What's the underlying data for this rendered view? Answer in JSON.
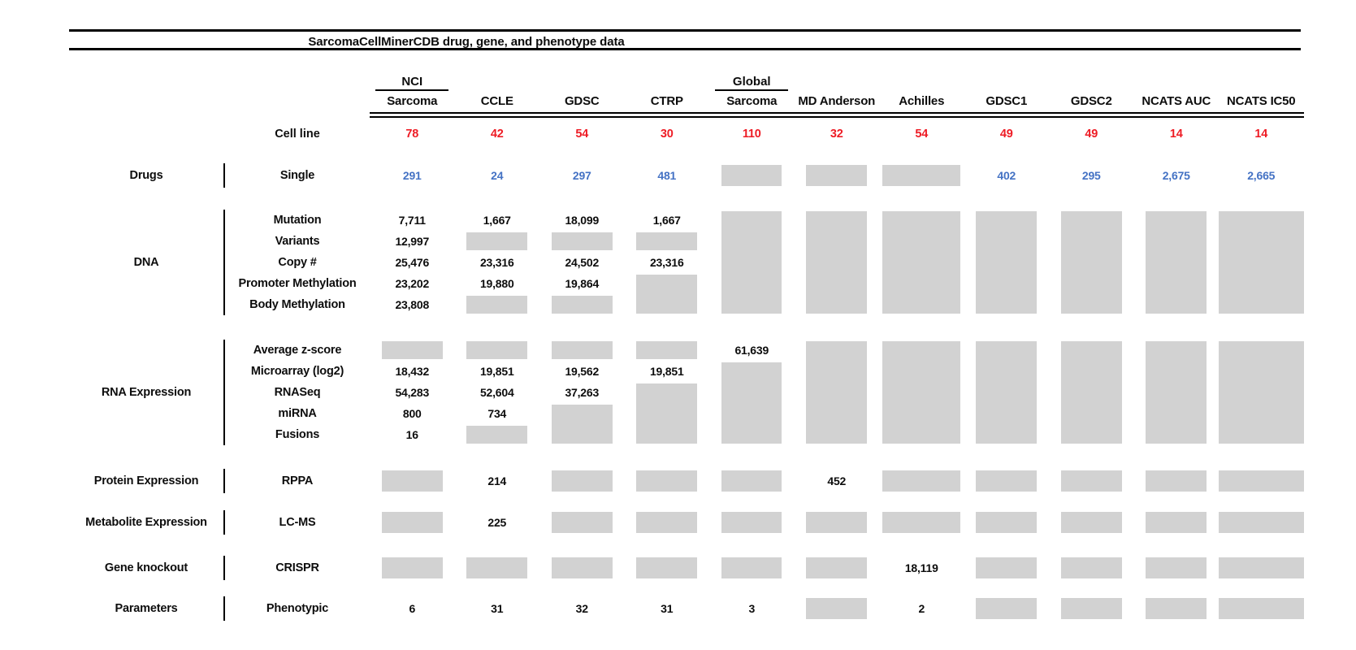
{
  "chart_data": {
    "type": "table",
    "title": "SarcomaCellMinerCDB drug, gene, and phenotype data",
    "missing_data_legend": "gray box = data not available",
    "colors": {
      "red": "#ee1c25",
      "blue": "#4472c4",
      "gray": "#d2d2d2",
      "ink": "#0d0d0d"
    },
    "columns": [
      {
        "top": "NCI",
        "label": "Sarcoma"
      },
      {
        "top": "",
        "label": "CCLE"
      },
      {
        "top": "",
        "label": "GDSC"
      },
      {
        "top": "",
        "label": "CTRP"
      },
      {
        "top": "Global",
        "label": "Sarcoma"
      },
      {
        "top": "",
        "label": "MD Anderson"
      },
      {
        "top": "",
        "label": "Achilles"
      },
      {
        "top": "",
        "label": "GDSC1"
      },
      {
        "top": "",
        "label": "GDSC2"
      },
      {
        "top": "",
        "label": "NCATS AUC"
      },
      {
        "top": "",
        "label": "NCATS IC50"
      }
    ],
    "cell_line": {
      "label": "Cell line",
      "counts": [
        "78",
        "42",
        "54",
        "30",
        "110",
        "32",
        "54",
        "49",
        "49",
        "14",
        "14"
      ]
    },
    "sections": [
      {
        "category": "Drugs",
        "value_color": "blue",
        "rows": [
          {
            "label": "Single",
            "cells": [
              "291",
              "24",
              "297",
              "481",
              null,
              null,
              null,
              "402",
              "295",
              "2,675",
              "2,665"
            ]
          }
        ]
      },
      {
        "category": "DNA",
        "rows": [
          {
            "label": "Mutation",
            "cells": [
              "7,711",
              "1,667",
              "18,099",
              "1,667",
              null,
              null,
              null,
              null,
              null,
              null,
              null
            ]
          },
          {
            "label": "Variants",
            "cells": [
              "12,997",
              null,
              null,
              null,
              null,
              null,
              null,
              null,
              null,
              null,
              null
            ]
          },
          {
            "label": "Copy #",
            "cells": [
              "25,476",
              "23,316",
              "24,502",
              "23,316",
              null,
              null,
              null,
              null,
              null,
              null,
              null
            ]
          },
          {
            "label": "Promoter Methylation",
            "cells": [
              "23,202",
              "19,880",
              "19,864",
              null,
              null,
              null,
              null,
              null,
              null,
              null,
              null
            ]
          },
          {
            "label": "Body Methylation",
            "cells": [
              "23,808",
              null,
              null,
              null,
              null,
              null,
              null,
              null,
              null,
              null,
              null
            ]
          }
        ]
      },
      {
        "category": "RNA Expression",
        "rows": [
          {
            "label": "Average z-score",
            "cells": [
              null,
              null,
              null,
              null,
              "61,639",
              null,
              null,
              null,
              null,
              null,
              null
            ]
          },
          {
            "label": "Microarray (log2)",
            "cells": [
              "18,432",
              "19,851",
              "19,562",
              "19,851",
              null,
              null,
              null,
              null,
              null,
              null,
              null
            ]
          },
          {
            "label": "RNASeq",
            "cells": [
              "54,283",
              "52,604",
              "37,263",
              null,
              null,
              null,
              null,
              null,
              null,
              null,
              null
            ]
          },
          {
            "label": "miRNA",
            "cells": [
              "800",
              "734",
              null,
              null,
              null,
              null,
              null,
              null,
              null,
              null,
              null
            ]
          },
          {
            "label": "Fusions",
            "cells": [
              "16",
              null,
              null,
              null,
              null,
              null,
              null,
              null,
              null,
              null,
              null
            ]
          }
        ]
      },
      {
        "category": "Protein Expression",
        "rows": [
          {
            "label": "RPPA",
            "cells": [
              null,
              "214",
              null,
              null,
              null,
              "452",
              null,
              null,
              null,
              null,
              null
            ]
          }
        ]
      },
      {
        "category": "Metabolite Expression",
        "rows": [
          {
            "label": "LC-MS",
            "cells": [
              null,
              "225",
              null,
              null,
              null,
              null,
              null,
              null,
              null,
              null,
              null
            ]
          }
        ]
      },
      {
        "category": "Gene knockout",
        "rows": [
          {
            "label": "CRISPR",
            "cells": [
              null,
              null,
              null,
              null,
              null,
              null,
              "18,119",
              null,
              null,
              null,
              null
            ]
          }
        ]
      },
      {
        "category": "Parameters",
        "rows": [
          {
            "label": "Phenotypic",
            "cells": [
              "6",
              "31",
              "32",
              "31",
              "3",
              null,
              "2",
              null,
              null,
              null,
              null
            ]
          }
        ]
      }
    ]
  }
}
